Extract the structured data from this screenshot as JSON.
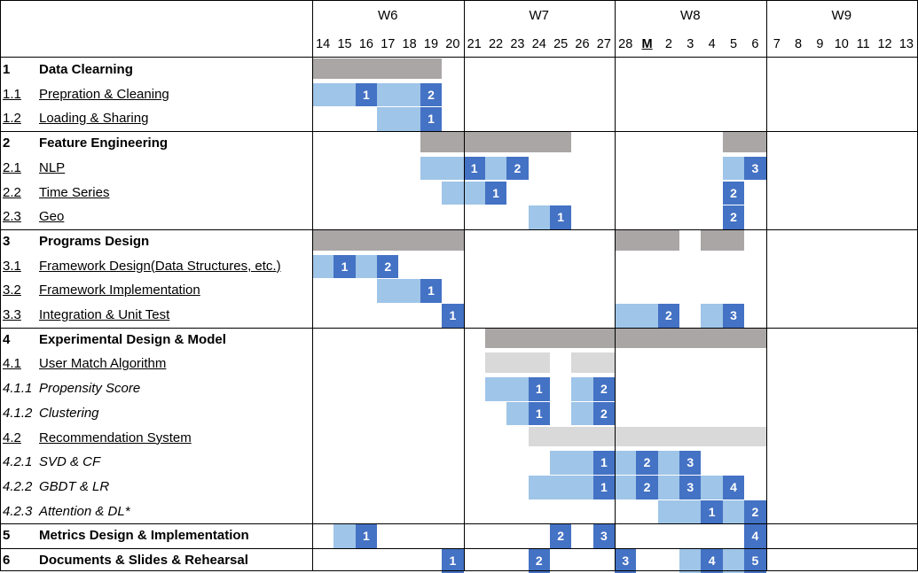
{
  "weeks": [
    {
      "label": "W6",
      "start": 0,
      "span": 7
    },
    {
      "label": "W7",
      "start": 7,
      "span": 7
    },
    {
      "label": "W8",
      "start": 14,
      "span": 7
    },
    {
      "label": "W9",
      "start": 21,
      "span": 7
    }
  ],
  "days": [
    "14",
    "15",
    "16",
    "17",
    "18",
    "19",
    "20",
    "21",
    "22",
    "23",
    "24",
    "25",
    "26",
    "27",
    "28",
    "M",
    "2",
    "3",
    "4",
    "5",
    "6",
    "7",
    "8",
    "9",
    "10",
    "11",
    "12",
    "13"
  ],
  "bold_day_index": 15,
  "tasks": [
    {
      "id": "1",
      "name": "Data Clearning",
      "level": 1,
      "cells": [
        {
          "s": 0,
          "e": 5,
          "t": "g"
        }
      ]
    },
    {
      "id": "1.1",
      "name": "Prepration & Cleaning",
      "level": 2,
      "cells": [
        {
          "s": 0,
          "e": 1,
          "t": "lb"
        },
        {
          "s": 2,
          "e": 2,
          "t": "db",
          "n": "1"
        },
        {
          "s": 3,
          "e": 4,
          "t": "lb"
        },
        {
          "s": 5,
          "e": 5,
          "t": "db",
          "n": "2"
        }
      ]
    },
    {
      "id": "1.2",
      "name": "Loading & Sharing",
      "level": 2,
      "cells": [
        {
          "s": 3,
          "e": 4,
          "t": "lb"
        },
        {
          "s": 5,
          "e": 5,
          "t": "db",
          "n": "1"
        }
      ]
    },
    {
      "id": "2",
      "name": "Feature Engineering",
      "level": 1,
      "cells": [
        {
          "s": 5,
          "e": 11,
          "t": "g"
        },
        {
          "s": 19,
          "e": 20,
          "t": "g"
        }
      ]
    },
    {
      "id": "2.1",
      "name": "NLP",
      "level": 2,
      "cells": [
        {
          "s": 5,
          "e": 6,
          "t": "lb"
        },
        {
          "s": 7,
          "e": 7,
          "t": "db",
          "n": "1"
        },
        {
          "s": 8,
          "e": 8,
          "t": "lb"
        },
        {
          "s": 9,
          "e": 9,
          "t": "db",
          "n": "2"
        },
        {
          "s": 19,
          "e": 19,
          "t": "lb"
        },
        {
          "s": 20,
          "e": 20,
          "t": "db",
          "n": "3"
        }
      ]
    },
    {
      "id": "2.2",
      "name": "Time Series",
      "level": 2,
      "cells": [
        {
          "s": 6,
          "e": 7,
          "t": "lb"
        },
        {
          "s": 8,
          "e": 8,
          "t": "db",
          "n": "1"
        },
        {
          "s": 19,
          "e": 19,
          "t": "db",
          "n": "2"
        }
      ]
    },
    {
      "id": "2.3",
      "name": "Geo",
      "level": 2,
      "cells": [
        {
          "s": 10,
          "e": 10,
          "t": "lb"
        },
        {
          "s": 11,
          "e": 11,
          "t": "db",
          "n": "1"
        },
        {
          "s": 19,
          "e": 19,
          "t": "db",
          "n": "2"
        }
      ]
    },
    {
      "id": "3",
      "name": "Programs Design",
      "level": 1,
      "cells": [
        {
          "s": 0,
          "e": 6,
          "t": "g"
        },
        {
          "s": 14,
          "e": 16,
          "t": "g"
        },
        {
          "s": 18,
          "e": 19,
          "t": "g"
        }
      ]
    },
    {
      "id": "3.1",
      "name": "Framework Design(Data Structures, etc.)",
      "level": 2,
      "cells": [
        {
          "s": 0,
          "e": 0,
          "t": "lb"
        },
        {
          "s": 1,
          "e": 1,
          "t": "db",
          "n": "1"
        },
        {
          "s": 2,
          "e": 2,
          "t": "lb"
        },
        {
          "s": 3,
          "e": 3,
          "t": "db",
          "n": "2"
        }
      ]
    },
    {
      "id": "3.2",
      "name": "Framework Implementation",
      "level": 2,
      "cells": [
        {
          "s": 3,
          "e": 4,
          "t": "lb"
        },
        {
          "s": 5,
          "e": 5,
          "t": "db",
          "n": "1"
        }
      ]
    },
    {
      "id": "3.3",
      "name": "Integration & Unit Test",
      "level": 2,
      "cells": [
        {
          "s": 6,
          "e": 6,
          "t": "db",
          "n": "1"
        },
        {
          "s": 14,
          "e": 15,
          "t": "lb"
        },
        {
          "s": 16,
          "e": 16,
          "t": "db",
          "n": "2"
        },
        {
          "s": 18,
          "e": 18,
          "t": "lb"
        },
        {
          "s": 19,
          "e": 19,
          "t": "db",
          "n": "3"
        }
      ]
    },
    {
      "id": "4",
      "name": "Experimental Design & Model",
      "level": 1,
      "cells": [
        {
          "s": 8,
          "e": 20,
          "t": "g"
        }
      ]
    },
    {
      "id": "4.1",
      "name": "User Match Algorithm",
      "level": 2,
      "cells": [
        {
          "s": 8,
          "e": 10,
          "t": "lg"
        },
        {
          "s": 12,
          "e": 13,
          "t": "lg"
        }
      ]
    },
    {
      "id": "4.1.1",
      "name": "Propensity Score",
      "level": 3,
      "cells": [
        {
          "s": 8,
          "e": 9,
          "t": "lb"
        },
        {
          "s": 10,
          "e": 10,
          "t": "db",
          "n": "1"
        },
        {
          "s": 12,
          "e": 12,
          "t": "lb"
        },
        {
          "s": 13,
          "e": 13,
          "t": "db",
          "n": "2"
        }
      ]
    },
    {
      "id": "4.1.2",
      "name": "Clustering",
      "level": 3,
      "cells": [
        {
          "s": 9,
          "e": 9,
          "t": "lb"
        },
        {
          "s": 10,
          "e": 10,
          "t": "db",
          "n": "1"
        },
        {
          "s": 12,
          "e": 12,
          "t": "lb"
        },
        {
          "s": 13,
          "e": 13,
          "t": "db",
          "n": "2"
        }
      ]
    },
    {
      "id": "4.2",
      "name": "Recommendation System",
      "level": 2,
      "cells": [
        {
          "s": 10,
          "e": 20,
          "t": "lg"
        }
      ]
    },
    {
      "id": "4.2.1",
      "name": "SVD & CF",
      "level": 3,
      "cells": [
        {
          "s": 11,
          "e": 12,
          "t": "lb"
        },
        {
          "s": 13,
          "e": 13,
          "t": "db",
          "n": "1"
        },
        {
          "s": 14,
          "e": 14,
          "t": "lb"
        },
        {
          "s": 15,
          "e": 15,
          "t": "db",
          "n": "2"
        },
        {
          "s": 16,
          "e": 16,
          "t": "lb"
        },
        {
          "s": 17,
          "e": 17,
          "t": "db",
          "n": "3"
        }
      ]
    },
    {
      "id": "4.2.2",
      "name": "GBDT & LR",
      "level": 3,
      "cells": [
        {
          "s": 10,
          "e": 12,
          "t": "lb"
        },
        {
          "s": 13,
          "e": 13,
          "t": "db",
          "n": "1"
        },
        {
          "s": 14,
          "e": 14,
          "t": "lb"
        },
        {
          "s": 15,
          "e": 15,
          "t": "db",
          "n": "2"
        },
        {
          "s": 16,
          "e": 16,
          "t": "lb"
        },
        {
          "s": 17,
          "e": 17,
          "t": "db",
          "n": "3"
        },
        {
          "s": 18,
          "e": 18,
          "t": "lb"
        },
        {
          "s": 19,
          "e": 19,
          "t": "db",
          "n": "4"
        }
      ]
    },
    {
      "id": "4.2.3",
      "name": "Attention & DL*",
      "level": 3,
      "cells": [
        {
          "s": 16,
          "e": 17,
          "t": "lb"
        },
        {
          "s": 18,
          "e": 18,
          "t": "db",
          "n": "1"
        },
        {
          "s": 19,
          "e": 19,
          "t": "lb"
        },
        {
          "s": 20,
          "e": 20,
          "t": "db",
          "n": "2"
        }
      ]
    },
    {
      "id": "5",
      "name": "Metrics Design & Implementation",
      "level": 1,
      "cells": [
        {
          "s": 1,
          "e": 1,
          "t": "lb"
        },
        {
          "s": 2,
          "e": 2,
          "t": "db",
          "n": "1"
        },
        {
          "s": 11,
          "e": 11,
          "t": "db",
          "n": "2"
        },
        {
          "s": 13,
          "e": 13,
          "t": "db",
          "n": "3"
        },
        {
          "s": 20,
          "e": 20,
          "t": "db",
          "n": "4"
        }
      ]
    },
    {
      "id": "6",
      "name": "Documents & Slides & Rehearsal",
      "level": 1,
      "cells": [
        {
          "s": 6,
          "e": 6,
          "t": "db",
          "n": "1"
        },
        {
          "s": 10,
          "e": 10,
          "t": "db",
          "n": "2"
        },
        {
          "s": 14,
          "e": 14,
          "t": "db",
          "n": "3"
        },
        {
          "s": 17,
          "e": 17,
          "t": "lb"
        },
        {
          "s": 18,
          "e": 18,
          "t": "db",
          "n": "4"
        },
        {
          "s": 19,
          "e": 19,
          "t": "lb"
        },
        {
          "s": 20,
          "e": 20,
          "t": "db",
          "n": "5"
        }
      ]
    }
  ],
  "section_breaks_after": [
    2,
    6,
    10,
    18,
    19
  ]
}
